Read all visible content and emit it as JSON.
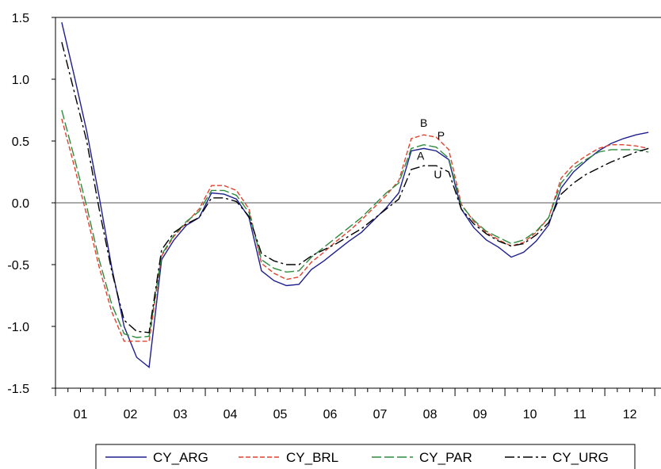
{
  "chart_data": {
    "type": "line",
    "title": "",
    "xlabel": "",
    "ylabel": "",
    "ylim": [
      -1.5,
      1.5
    ],
    "yticks": [
      {
        "value": 1.5,
        "label": "1.5"
      },
      {
        "value": 1.0,
        "label": "1.0"
      },
      {
        "value": 0.5,
        "label": "0.5"
      },
      {
        "value": 0.0,
        "label": "0.0"
      },
      {
        "value": -0.5,
        "label": "-0.5"
      },
      {
        "value": -1.0,
        "label": "-1.0"
      },
      {
        "value": -1.5,
        "label": "-1.5"
      }
    ],
    "year_labels": [
      "01",
      "02",
      "03",
      "04",
      "05",
      "06",
      "07",
      "08",
      "09",
      "10",
      "11",
      "12"
    ],
    "periods_per_year": 4,
    "zero_line": true,
    "grid": false,
    "legend_position": "bottom",
    "series": [
      {
        "name": "CY_ARG",
        "color": "#1f1f8f",
        "dash": "solid",
        "values": [
          1.46,
          1.03,
          0.58,
          0.05,
          -0.52,
          -1.0,
          -1.25,
          -1.33,
          -0.46,
          -0.3,
          -0.18,
          -0.12,
          0.08,
          0.07,
          0.03,
          -0.12,
          -0.55,
          -0.63,
          -0.67,
          -0.66,
          -0.54,
          -0.47,
          -0.39,
          -0.31,
          -0.24,
          -0.14,
          -0.04,
          0.08,
          0.42,
          0.44,
          0.42,
          0.35,
          -0.05,
          -0.2,
          -0.3,
          -0.36,
          -0.44,
          -0.4,
          -0.31,
          -0.18,
          0.12,
          0.25,
          0.34,
          0.42,
          0.48,
          0.52,
          0.55,
          0.57
        ]
      },
      {
        "name": "CY_BRL",
        "color": "#e0422e",
        "dash": "dashed",
        "values": [
          0.68,
          0.3,
          -0.1,
          -0.52,
          -0.88,
          -1.12,
          -1.12,
          -1.12,
          -0.43,
          -0.27,
          -0.16,
          -0.05,
          0.14,
          0.14,
          0.1,
          -0.05,
          -0.49,
          -0.57,
          -0.62,
          -0.6,
          -0.48,
          -0.4,
          -0.31,
          -0.23,
          -0.14,
          -0.04,
          0.06,
          0.18,
          0.52,
          0.55,
          0.53,
          0.43,
          -0.01,
          -0.15,
          -0.24,
          -0.3,
          -0.35,
          -0.32,
          -0.24,
          -0.12,
          0.2,
          0.31,
          0.38,
          0.44,
          0.47,
          0.47,
          0.46,
          0.44
        ]
      },
      {
        "name": "CY_PAR",
        "color": "#2e8b3e",
        "dash": "longdash",
        "values": [
          0.75,
          0.37,
          -0.03,
          -0.46,
          -0.82,
          -1.06,
          -1.09,
          -1.08,
          -0.42,
          -0.26,
          -0.15,
          -0.07,
          0.1,
          0.1,
          0.06,
          -0.08,
          -0.46,
          -0.53,
          -0.56,
          -0.55,
          -0.44,
          -0.36,
          -0.28,
          -0.2,
          -0.12,
          -0.02,
          0.08,
          0.16,
          0.44,
          0.47,
          0.45,
          0.36,
          -0.02,
          -0.14,
          -0.23,
          -0.28,
          -0.33,
          -0.3,
          -0.23,
          -0.12,
          0.16,
          0.28,
          0.35,
          0.41,
          0.43,
          0.43,
          0.43,
          0.41
        ]
      },
      {
        "name": "CY_URG",
        "color": "#000000",
        "dash": "dashdot",
        "values": [
          1.3,
          0.9,
          0.5,
          -0.05,
          -0.55,
          -0.95,
          -1.04,
          -1.05,
          -0.38,
          -0.24,
          -0.17,
          -0.12,
          0.04,
          0.04,
          0.01,
          -0.11,
          -0.41,
          -0.47,
          -0.5,
          -0.5,
          -0.43,
          -0.38,
          -0.33,
          -0.27,
          -0.21,
          -0.13,
          -0.05,
          0.03,
          0.27,
          0.3,
          0.3,
          0.25,
          -0.05,
          -0.17,
          -0.25,
          -0.31,
          -0.35,
          -0.33,
          -0.26,
          -0.16,
          0.07,
          0.16,
          0.23,
          0.28,
          0.33,
          0.37,
          0.41,
          0.44
        ]
      }
    ],
    "annotations": [
      {
        "text": "B",
        "series": "CY_BRL",
        "index": 29
      },
      {
        "text": "P",
        "series": "CY_PAR",
        "index": 30
      },
      {
        "text": "A",
        "series": "CY_ARG",
        "index": 29
      },
      {
        "text": "U",
        "series": "CY_URG",
        "index": 30
      }
    ]
  }
}
